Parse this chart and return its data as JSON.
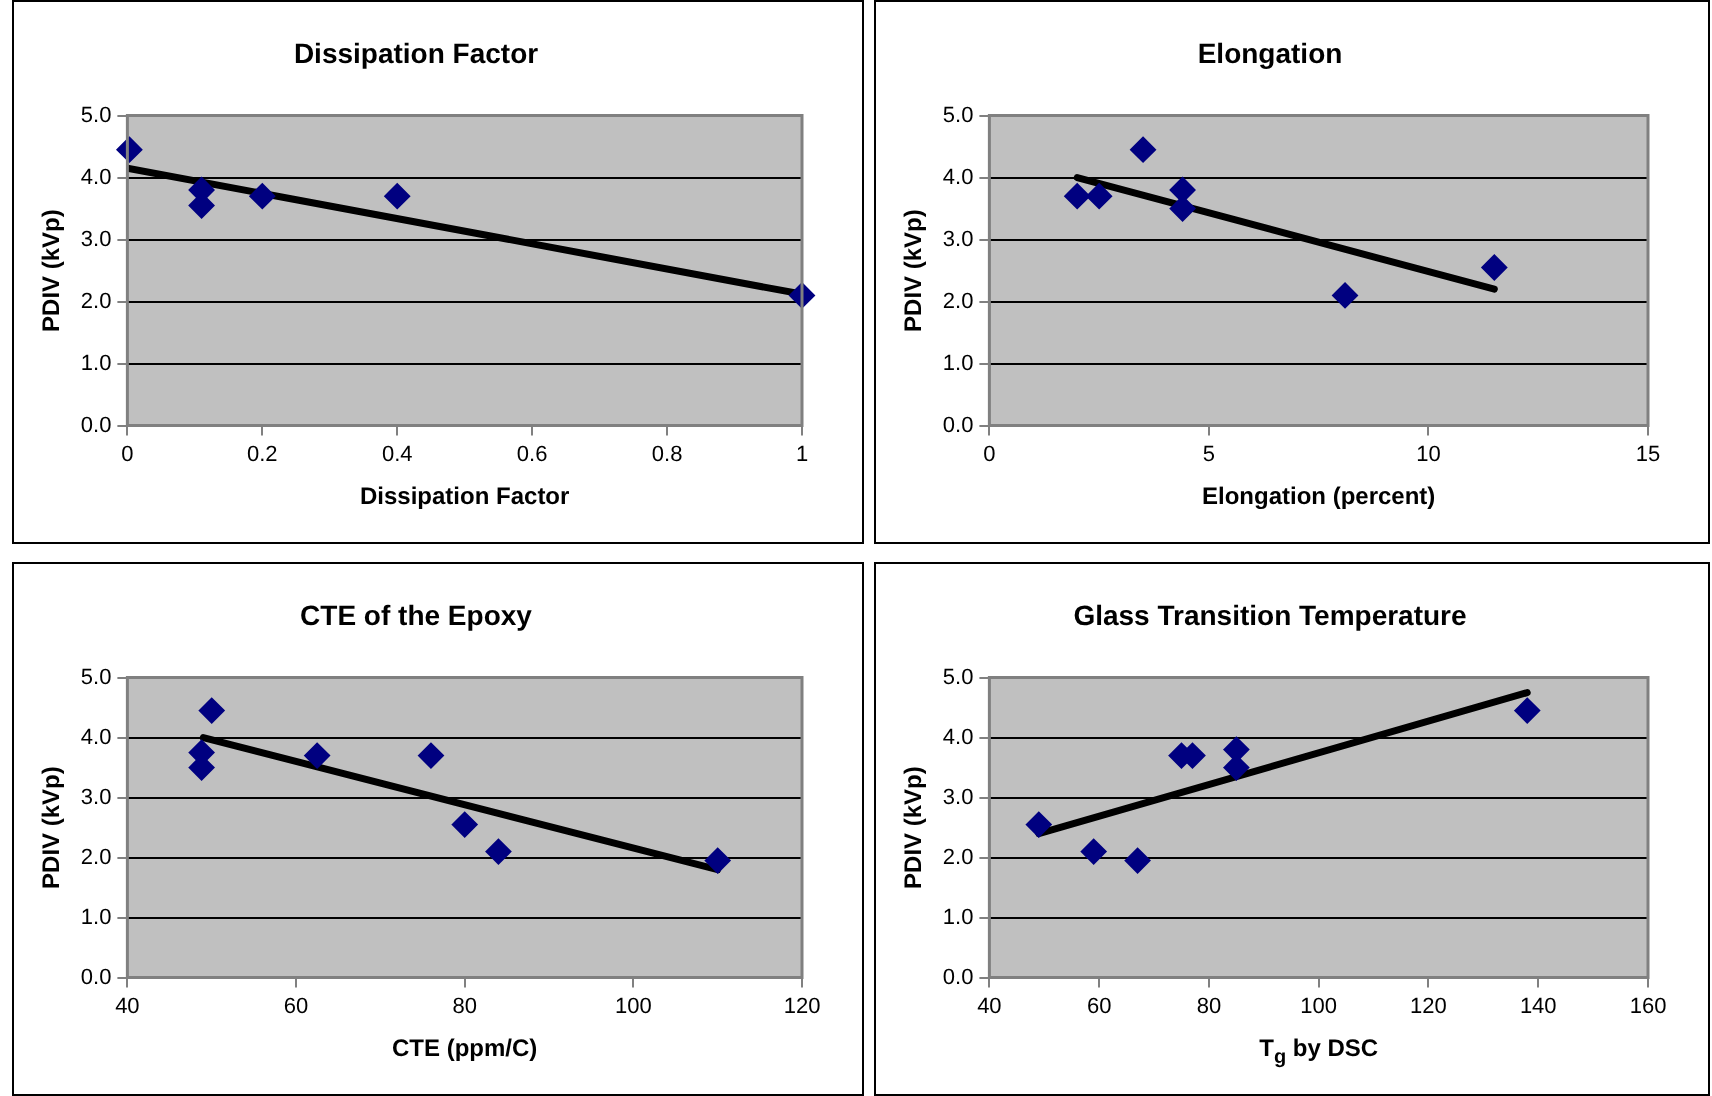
{
  "chart_data": [
    {
      "type": "scatter",
      "title": "Dissipation Factor",
      "xlabel": "Dissipation Factor",
      "ylabel": "PDIV (kVp)",
      "xlim": [
        0,
        1
      ],
      "xticks": [
        0,
        0.2,
        0.4,
        0.6,
        0.8,
        1
      ],
      "ylim": [
        0,
        5
      ],
      "yticks": [
        {
          "value": 0,
          "label": "0.0"
        },
        {
          "value": 1,
          "label": "1.0"
        },
        {
          "value": 2,
          "label": "2.0"
        },
        {
          "value": 3,
          "label": "3.0"
        },
        {
          "value": 4,
          "label": "4.0"
        },
        {
          "value": 5,
          "label": "5.0"
        }
      ],
      "grid": "y",
      "legend": false,
      "series": [
        {
          "color": "#000080",
          "marker": "diamond",
          "x": [
            0.003,
            0.11,
            0.11,
            0.2,
            0.4,
            1
          ],
          "values": [
            4.45,
            3.8,
            3.55,
            3.7,
            3.7,
            2.1
          ]
        },
        {
          "type": "line",
          "color": "#000000",
          "marker": "none",
          "x": [
            0,
            1
          ],
          "values": [
            4.15,
            2.12
          ]
        }
      ]
    },
    {
      "type": "scatter",
      "title": "Elongation",
      "xlabel": "Elongation (percent)",
      "ylabel": "PDIV (kVp)",
      "xlim": [
        0,
        15
      ],
      "xticks": [
        0,
        5,
        10,
        15
      ],
      "ylim": [
        0,
        5
      ],
      "yticks": [
        {
          "value": 0,
          "label": "0.0"
        },
        {
          "value": 1,
          "label": "1.0"
        },
        {
          "value": 2,
          "label": "2.0"
        },
        {
          "value": 3,
          "label": "3.0"
        },
        {
          "value": 4,
          "label": "4.0"
        },
        {
          "value": 5,
          "label": "5.0"
        }
      ],
      "grid": "y",
      "legend": false,
      "series": [
        {
          "color": "#000080",
          "marker": "diamond",
          "x": [
            2,
            2.5,
            3.5,
            4.4,
            4.4,
            8.1,
            11.5
          ],
          "values": [
            3.7,
            3.7,
            4.45,
            3.8,
            3.5,
            2.1,
            2.55
          ]
        },
        {
          "type": "line",
          "color": "#000000",
          "marker": "none",
          "x": [
            2,
            11.5
          ],
          "values": [
            4.0,
            2.2
          ]
        }
      ]
    },
    {
      "type": "scatter",
      "title": "CTE of the Epoxy",
      "xlabel": "CTE (ppm/C)",
      "ylabel": "PDIV (kVp)",
      "xlim": [
        40,
        120
      ],
      "xticks": [
        40,
        60,
        80,
        100,
        120
      ],
      "ylim": [
        0,
        5
      ],
      "yticks": [
        {
          "value": 0,
          "label": "0.0"
        },
        {
          "value": 1,
          "label": "1.0"
        },
        {
          "value": 2,
          "label": "2.0"
        },
        {
          "value": 3,
          "label": "3.0"
        },
        {
          "value": 4,
          "label": "4.0"
        },
        {
          "value": 5,
          "label": "5.0"
        }
      ],
      "grid": "y",
      "legend": false,
      "series": [
        {
          "color": "#000080",
          "marker": "diamond",
          "x": [
            48.8,
            48.8,
            50,
            62.5,
            76,
            80,
            84,
            110
          ],
          "values": [
            3.75,
            3.5,
            4.45,
            3.7,
            3.7,
            2.55,
            2.1,
            1.95
          ]
        },
        {
          "type": "line",
          "color": "#000000",
          "marker": "none",
          "x": [
            49,
            110
          ],
          "values": [
            4.0,
            1.8
          ]
        }
      ]
    },
    {
      "type": "scatter",
      "title": "Glass Transition Temperature",
      "xlabel": "T$_{g}$ by DSC",
      "ylabel": "PDIV (kVp)",
      "xlim": [
        40,
        160
      ],
      "xticks": [
        40,
        60,
        80,
        100,
        120,
        140,
        160
      ],
      "ylim": [
        0,
        5
      ],
      "yticks": [
        {
          "value": 0,
          "label": "0.0"
        },
        {
          "value": 1,
          "label": "1.0"
        },
        {
          "value": 2,
          "label": "2.0"
        },
        {
          "value": 3,
          "label": "3.0"
        },
        {
          "value": 4,
          "label": "4.0"
        },
        {
          "value": 5,
          "label": "5.0"
        }
      ],
      "grid": "y",
      "legend": false,
      "series": [
        {
          "color": "#000080",
          "marker": "diamond",
          "x": [
            49,
            59,
            67,
            75,
            77,
            85,
            85,
            138
          ],
          "values": [
            2.55,
            2.1,
            1.95,
            3.7,
            3.7,
            3.8,
            3.5,
            4.45
          ]
        },
        {
          "type": "line",
          "color": "#000000",
          "marker": "none",
          "x": [
            49,
            138
          ],
          "values": [
            2.4,
            4.75
          ]
        }
      ]
    }
  ]
}
